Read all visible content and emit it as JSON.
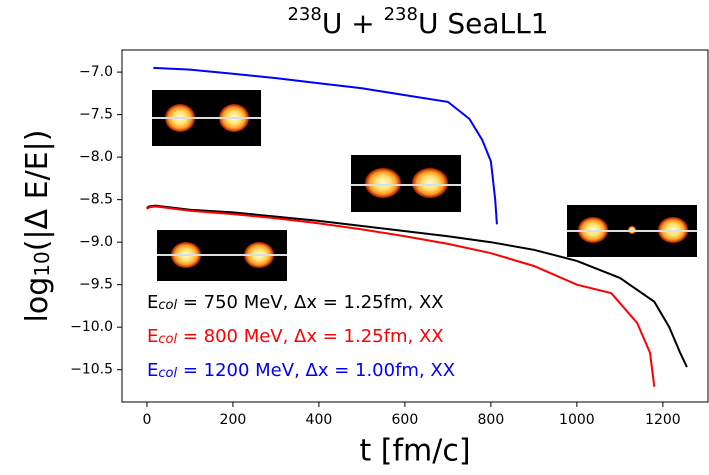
{
  "chart_data": {
    "type": "line",
    "title_parts": [
      "238",
      "U + ",
      "238",
      "U SeaLL1"
    ],
    "x_label": "t [fm/c]",
    "y_label_parts": [
      "log",
      "10",
      "(|Δ E/E|)"
    ],
    "xlim": [
      -58,
      1305
    ],
    "ylim": [
      -10.88,
      -6.74
    ],
    "xticks": [
      0,
      200,
      400,
      600,
      800,
      1000,
      1200
    ],
    "yticks": [
      {
        "value": -7.0,
        "label": "−7.0"
      },
      {
        "value": -7.5,
        "label": "−7.5"
      },
      {
        "value": -8.0,
        "label": "−8.0"
      },
      {
        "value": -8.5,
        "label": "−8.5"
      },
      {
        "value": -9.0,
        "label": "−9.0"
      },
      {
        "value": -9.5,
        "label": "−9.5"
      },
      {
        "value": -10.0,
        "label": "−10.0"
      },
      {
        "value": -10.5,
        "label": "−10.5"
      }
    ],
    "series": [
      {
        "name": [
          "E",
          "col",
          " = 750 MeV, Δx = 1.25fm, XX"
        ],
        "color": "#000000",
        "x": [
          0,
          5,
          20,
          100,
          200,
          300,
          400,
          500,
          600,
          700,
          800,
          900,
          1000,
          1100,
          1180,
          1215,
          1240,
          1256
        ],
        "values": [
          -8.6,
          -8.58,
          -8.57,
          -8.62,
          -8.65,
          -8.7,
          -8.75,
          -8.81,
          -8.87,
          -8.93,
          -9.0,
          -9.09,
          -9.22,
          -9.42,
          -9.7,
          -10.0,
          -10.3,
          -10.47
        ]
      },
      {
        "name": [
          "E",
          "col",
          " = 800 MeV, Δx = 1.25fm, XX"
        ],
        "color": "#ff0000",
        "x": [
          0,
          5,
          20,
          100,
          200,
          300,
          400,
          500,
          600,
          700,
          800,
          900,
          1000,
          1080,
          1140,
          1170,
          1180
        ],
        "values": [
          -8.61,
          -8.59,
          -8.58,
          -8.63,
          -8.67,
          -8.72,
          -8.78,
          -8.85,
          -8.93,
          -9.02,
          -9.13,
          -9.28,
          -9.5,
          -9.6,
          -9.95,
          -10.3,
          -10.7
        ]
      },
      {
        "name": [
          "E",
          "col",
          " = 1200 MeV, Δx = 1.00fm, XX"
        ],
        "color": "#0000ff",
        "x": [
          15,
          100,
          200,
          300,
          400,
          500,
          600,
          700,
          750,
          780,
          800,
          810,
          814
        ],
        "values": [
          -6.95,
          -6.97,
          -7.02,
          -7.07,
          -7.13,
          -7.19,
          -7.27,
          -7.35,
          -7.55,
          -7.8,
          -8.05,
          -8.5,
          -8.79
        ]
      }
    ]
  }
}
